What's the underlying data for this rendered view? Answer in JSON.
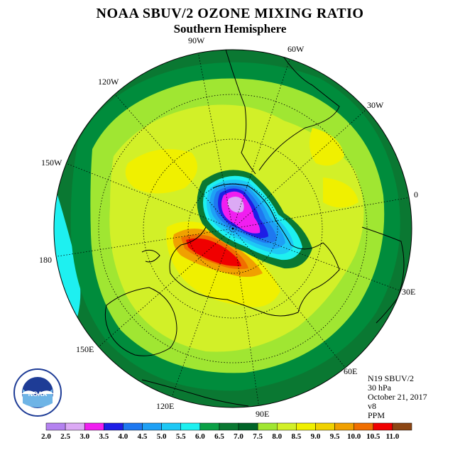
{
  "header": {
    "title": "NOAA SBUV/2 OZONE MIXING RATIO",
    "subtitle": "Southern Hemisphere"
  },
  "longitude_labels": [
    "90W",
    "60W",
    "120W",
    "30W",
    "150W",
    "0",
    "180",
    "30E",
    "150E",
    "60E",
    "120E",
    "90E"
  ],
  "info": {
    "instrument": "N19 SBUV/2",
    "level": "30 hPa",
    "date": "October 21, 2017",
    "version": "v8",
    "units": "PPM"
  },
  "logo": {
    "text": "NOAA"
  },
  "colorbar": {
    "ticks": [
      "2.0",
      "2.5",
      "3.0",
      "3.5",
      "4.0",
      "4.5",
      "5.0",
      "5.5",
      "6.0",
      "6.5",
      "7.0",
      "7.5",
      "8.0",
      "8.5",
      "9.0",
      "9.5",
      "10.0",
      "10.5",
      "11.0"
    ],
    "colors": [
      "#b482f0",
      "#dcaaf5",
      "#f01ef0",
      "#1e1ee6",
      "#1e78f0",
      "#1ea0f5",
      "#1ec8f5",
      "#1ef0f0",
      "#0aa046",
      "#0a7832",
      "#006428",
      "#a0e632",
      "#d2f028",
      "#f0f000",
      "#f0d200",
      "#f0a000",
      "#f06e00",
      "#f00000",
      "#8c4614"
    ]
  }
}
